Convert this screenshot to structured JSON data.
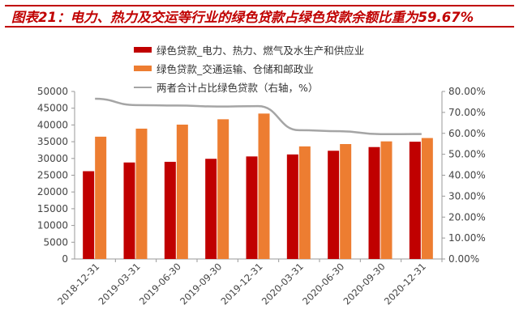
{
  "title": "图表21：电力、热力及交运等行业的绿色贷款占绿色贷款余额比重为59.67%",
  "chart_data": {
    "type": "bar+line",
    "categories": [
      "2018-12-31",
      "2019-03-31",
      "2019-06-30",
      "2019-09-30",
      "2019-12-31",
      "2020-03-31",
      "2020-06-30",
      "2020-09-30",
      "2020-12-31"
    ],
    "series": [
      {
        "name": "绿色贷款_电力、热力、燃气及水生产和供应业",
        "type": "bar",
        "axis": "left",
        "color": "#c00000",
        "values": [
          26200,
          28800,
          29000,
          29900,
          30600,
          31200,
          32300,
          33400,
          35000
        ]
      },
      {
        "name": "绿色贷款_交通运输、仓储和邮政业",
        "type": "bar",
        "axis": "left",
        "color": "#ed7d31",
        "values": [
          36500,
          38900,
          40100,
          41700,
          43400,
          33600,
          34300,
          35100,
          36100
        ]
      },
      {
        "name": "两者合计占比绿色贷款（右轴，%）",
        "type": "line",
        "axis": "right",
        "color": "#a5a5a5",
        "values": [
          76.5,
          73.5,
          73.3,
          72.8,
          73.0,
          61.5,
          61.0,
          59.6,
          59.67
        ]
      }
    ],
    "ylim": [
      0,
      50000
    ],
    "y2lim": [
      0,
      80
    ],
    "yticks": [
      "0",
      "5000",
      "10000",
      "15000",
      "20000",
      "25000",
      "30000",
      "35000",
      "40000",
      "45000",
      "50000"
    ],
    "y2ticks": [
      "0.00%",
      "10.00%",
      "20.00%",
      "30.00%",
      "40.00%",
      "50.00%",
      "60.00%",
      "70.00%",
      "80.00%"
    ],
    "grid": false,
    "legend": "top"
  }
}
